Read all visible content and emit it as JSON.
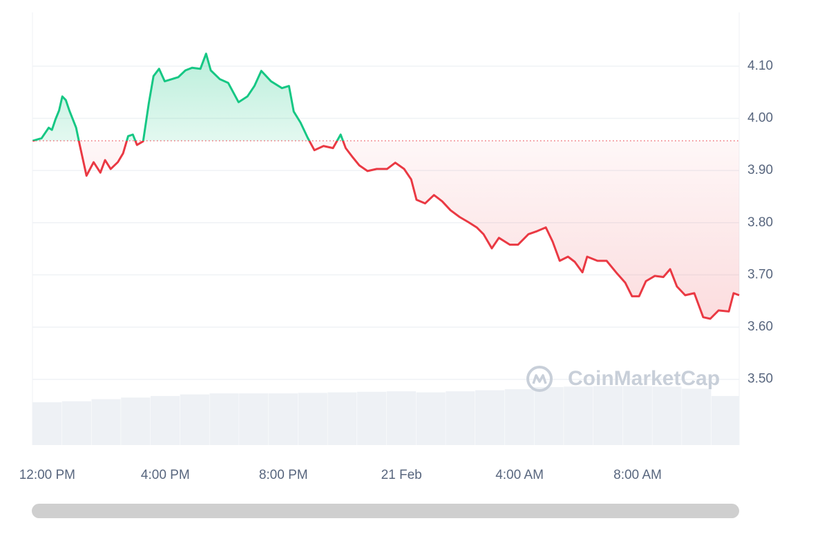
{
  "chart_data": {
    "type": "line",
    "watermark": "CoinMarketCap",
    "baseline": 3.957,
    "up_color": "#16c784",
    "down_color": "#ea3943",
    "volume_color": "#eef1f5",
    "grid": true,
    "xlim": [
      -0.5,
      23.44
    ],
    "ylim": [
      3.374,
      4.203
    ],
    "xticks": [
      {
        "value": 0,
        "label": "12:00 PM"
      },
      {
        "value": 4,
        "label": "4:00 PM"
      },
      {
        "value": 8,
        "label": "8:00 PM"
      },
      {
        "value": 12,
        "label": "21 Feb"
      },
      {
        "value": 16,
        "label": "4:00 AM"
      },
      {
        "value": 20,
        "label": "8:00 AM"
      }
    ],
    "yticks": [
      {
        "value": 3.5,
        "label": "3.50"
      },
      {
        "value": 3.6,
        "label": "3.60"
      },
      {
        "value": 3.7,
        "label": "3.70"
      },
      {
        "value": 3.8,
        "label": "3.80"
      },
      {
        "value": 3.9,
        "label": "3.90"
      },
      {
        "value": 4.0,
        "label": "4.00"
      },
      {
        "value": 4.1,
        "label": "4.10"
      }
    ],
    "x": [
      -0.49,
      -0.19,
      0.05,
      0.16,
      0.28,
      0.4,
      0.51,
      0.63,
      0.75,
      0.98,
      1.1,
      1.33,
      1.57,
      1.8,
      1.96,
      2.15,
      2.39,
      2.57,
      2.74,
      2.9,
      3.04,
      3.25,
      3.44,
      3.6,
      3.79,
      3.98,
      4.21,
      4.44,
      4.68,
      4.91,
      5.19,
      5.38,
      5.54,
      5.85,
      6.13,
      6.48,
      6.78,
      7.02,
      7.25,
      7.58,
      7.95,
      8.19,
      8.35,
      8.58,
      8.82,
      9.05,
      9.36,
      9.68,
      9.94,
      10.11,
      10.34,
      10.57,
      10.85,
      11.16,
      11.51,
      11.79,
      12.09,
      12.33,
      12.51,
      12.8,
      13.1,
      13.38,
      13.66,
      13.97,
      14.27,
      14.55,
      14.78,
      15.06,
      15.3,
      15.67,
      15.95,
      16.3,
      16.6,
      16.89,
      17.12,
      17.36,
      17.64,
      17.87,
      18.13,
      18.29,
      18.64,
      18.95,
      19.27,
      19.58,
      19.81,
      20.05,
      20.28,
      20.58,
      20.87,
      21.1,
      21.33,
      21.61,
      21.92,
      22.22,
      22.46,
      22.74,
      23.09,
      23.25,
      23.44
    ],
    "values": [
      3.957,
      3.962,
      3.982,
      3.978,
      3.998,
      4.015,
      4.042,
      4.035,
      4.015,
      3.982,
      3.949,
      3.89,
      3.916,
      3.896,
      3.92,
      3.903,
      3.916,
      3.933,
      3.966,
      3.969,
      3.949,
      3.956,
      4.029,
      4.081,
      4.095,
      4.071,
      4.075,
      4.079,
      4.092,
      4.097,
      4.095,
      4.124,
      4.092,
      4.075,
      4.068,
      4.031,
      4.042,
      4.062,
      4.091,
      4.071,
      4.058,
      4.062,
      4.013,
      3.992,
      3.963,
      3.939,
      3.947,
      3.943,
      3.969,
      3.943,
      3.926,
      3.91,
      3.899,
      3.903,
      3.903,
      3.915,
      3.903,
      3.883,
      3.844,
      3.837,
      3.853,
      3.841,
      3.824,
      3.811,
      3.801,
      3.791,
      3.778,
      3.751,
      3.771,
      3.758,
      3.758,
      3.778,
      3.784,
      3.791,
      3.764,
      3.727,
      3.735,
      3.725,
      3.705,
      3.735,
      3.727,
      3.727,
      3.705,
      3.685,
      3.659,
      3.659,
      3.688,
      3.698,
      3.696,
      3.711,
      3.678,
      3.661,
      3.665,
      3.619,
      3.616,
      3.632,
      3.63,
      3.665,
      3.661
    ],
    "volume": {
      "x": [
        -0.5,
        0.5,
        1.5,
        2.5,
        3.5,
        4.5,
        5.5,
        6.5,
        7.5,
        8.5,
        9.5,
        10.5,
        11.5,
        12.5,
        13.5,
        14.5,
        15.5,
        16.5,
        17.5,
        18.5,
        19.5,
        20.5,
        21.5,
        22.5
      ],
      "values": [
        3.456,
        3.458,
        3.462,
        3.465,
        3.468,
        3.471,
        3.473,
        3.473,
        3.473,
        3.474,
        3.475,
        3.476,
        3.477,
        3.475,
        3.477,
        3.479,
        3.481,
        3.485,
        3.486,
        3.487,
        3.487,
        3.486,
        3.482,
        3.468
      ]
    }
  }
}
